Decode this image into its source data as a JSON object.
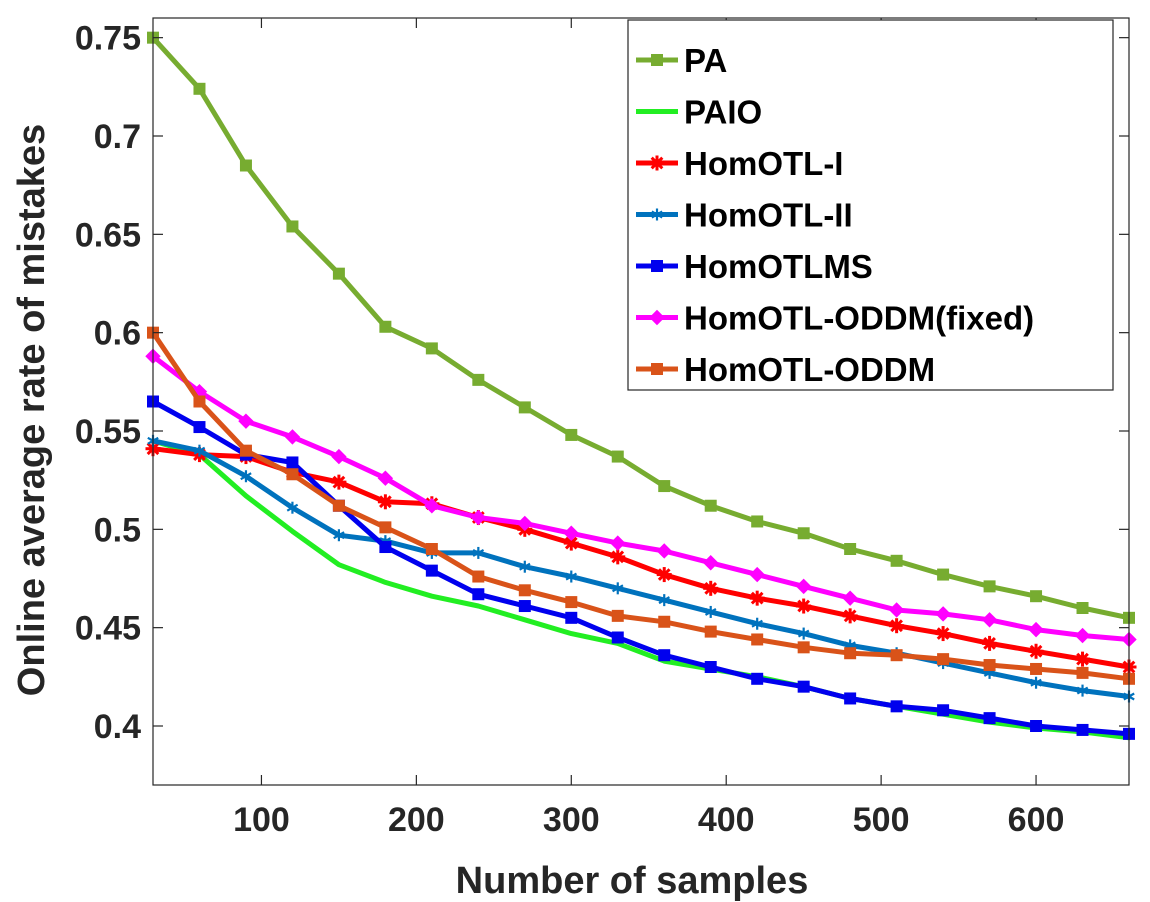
{
  "chart_data": {
    "type": "line",
    "title": "",
    "xlabel": "Number of samples",
    "ylabel": "Online average rate of mistakes",
    "xlim": [
      30,
      660
    ],
    "ylim": [
      0.37,
      0.76
    ],
    "xticks": [
      100,
      200,
      300,
      400,
      500,
      600
    ],
    "yticks": [
      0.4,
      0.45,
      0.5,
      0.55,
      0.6,
      0.65,
      0.7,
      0.75
    ],
    "ytick_labels": [
      "0.4",
      "0.45",
      "0.5",
      "0.55",
      "0.6",
      "0.65",
      "0.7",
      "0.75"
    ],
    "legend_position": "top-right",
    "grid": false,
    "x": [
      30,
      60,
      90,
      120,
      150,
      180,
      210,
      240,
      270,
      300,
      330,
      360,
      390,
      420,
      450,
      480,
      510,
      540,
      570,
      600,
      630,
      660
    ],
    "series": [
      {
        "name": "PA",
        "color": "#77ac30",
        "marker": "square",
        "values": [
          0.75,
          0.724,
          0.685,
          0.654,
          0.63,
          0.603,
          0.592,
          0.576,
          0.562,
          0.548,
          0.537,
          0.522,
          0.512,
          0.504,
          0.498,
          0.49,
          0.484,
          0.477,
          0.471,
          0.466,
          0.46,
          0.455
        ]
      },
      {
        "name": "PAIO",
        "color": "#22ee22",
        "marker": "none",
        "values": [
          0.545,
          0.538,
          0.517,
          0.499,
          0.482,
          0.473,
          0.466,
          0.461,
          0.454,
          0.447,
          0.442,
          0.433,
          0.429,
          0.425,
          0.42,
          0.414,
          0.41,
          0.406,
          0.402,
          0.399,
          0.397,
          0.394
        ]
      },
      {
        "name": "HomOTL-I",
        "color": "#ff0000",
        "marker": "star",
        "values": [
          0.541,
          0.538,
          0.537,
          0.529,
          0.524,
          0.514,
          0.513,
          0.506,
          0.5,
          0.493,
          0.486,
          0.477,
          0.47,
          0.465,
          0.461,
          0.456,
          0.451,
          0.447,
          0.442,
          0.438,
          0.434,
          0.43
        ]
      },
      {
        "name": "HomOTL-II",
        "color": "#0072bd",
        "marker": "asterisk",
        "values": [
          0.545,
          0.54,
          0.527,
          0.511,
          0.497,
          0.494,
          0.488,
          0.488,
          0.481,
          0.476,
          0.47,
          0.464,
          0.458,
          0.452,
          0.447,
          0.441,
          0.437,
          0.432,
          0.427,
          0.422,
          0.418,
          0.415
        ]
      },
      {
        "name": "HomOTLMS",
        "color": "#0000ee",
        "marker": "square",
        "values": [
          0.565,
          0.552,
          0.538,
          0.534,
          0.512,
          0.491,
          0.479,
          0.467,
          0.461,
          0.455,
          0.445,
          0.436,
          0.43,
          0.424,
          0.42,
          0.414,
          0.41,
          0.408,
          0.404,
          0.4,
          0.398,
          0.396
        ]
      },
      {
        "name": "HomOTL-ODDM(fixed)",
        "color": "#ff00ff",
        "marker": "diamond",
        "values": [
          0.588,
          0.57,
          0.555,
          0.547,
          0.537,
          0.526,
          0.512,
          0.506,
          0.503,
          0.498,
          0.493,
          0.489,
          0.483,
          0.477,
          0.471,
          0.465,
          0.459,
          0.457,
          0.454,
          0.449,
          0.446,
          0.444
        ]
      },
      {
        "name": "HomOTL-ODDM",
        "color": "#d95319",
        "marker": "square",
        "values": [
          0.6,
          0.565,
          0.54,
          0.528,
          0.512,
          0.501,
          0.49,
          0.476,
          0.469,
          0.463,
          0.456,
          0.453,
          0.448,
          0.444,
          0.44,
          0.437,
          0.436,
          0.434,
          0.431,
          0.429,
          0.427,
          0.424
        ]
      }
    ]
  }
}
